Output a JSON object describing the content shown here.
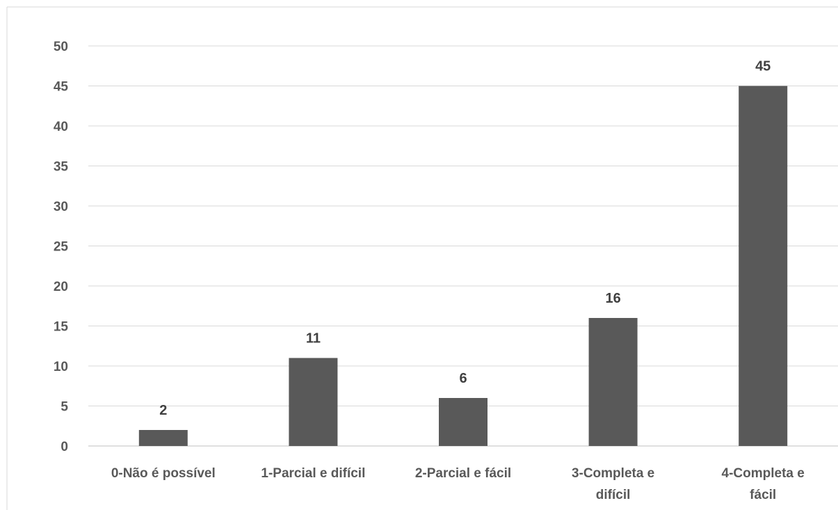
{
  "chart_data": {
    "type": "bar",
    "title": "",
    "xlabel": "",
    "ylabel": "",
    "categories": [
      "0-Não é possível",
      "1-Parcial e difícil",
      "2-Parcial e fácil",
      "3-Completa e difícil",
      "4-Completa e fácil"
    ],
    "category_lines": [
      [
        "0-Não é possível"
      ],
      [
        "1-Parcial e difícil"
      ],
      [
        "2-Parcial e fácil"
      ],
      [
        "3-Completa e",
        "difícil"
      ],
      [
        "4-Completa e",
        "fácil"
      ]
    ],
    "values": [
      2,
      11,
      6,
      16,
      45
    ],
    "data_labels": [
      "2",
      "11",
      "6",
      "16",
      "45"
    ],
    "ylim": [
      0,
      50
    ],
    "yticks": [
      0,
      5,
      10,
      15,
      20,
      25,
      30,
      35,
      40,
      45,
      50
    ],
    "grid": true,
    "legend": "none",
    "bar_color": "#595959"
  }
}
